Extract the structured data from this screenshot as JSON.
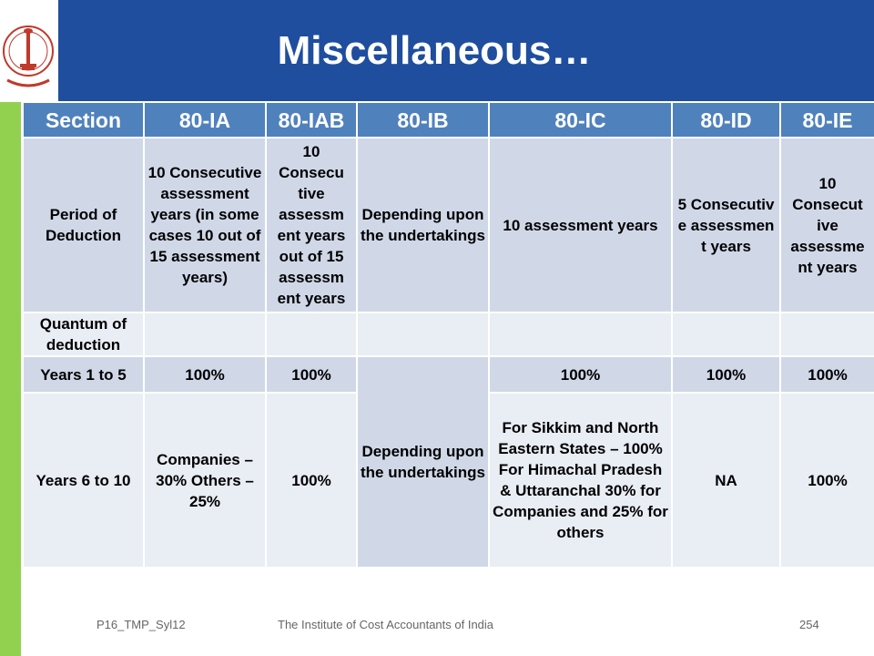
{
  "slide": {
    "title": "Miscellaneous…",
    "logo_name": "icai-seal-icon"
  },
  "table": {
    "headers": [
      "Section",
      "80-IA",
      "80-IAB",
      "80-IB",
      "80-IC",
      "80-ID",
      "80-IE"
    ],
    "period": {
      "label": "Period of Deduction",
      "ia": "10 Consecutive assessment years (in some cases 10 out of 15 assessment years)",
      "iab": "10 Consecu tive assessm ent years out of 15 assessm ent years",
      "ib": "Depending upon the undertakings",
      "ic": "10 assessment years",
      "id": "5 Consecutiv e assessmen t years",
      "ie": "10 Consecut ive assessme nt years"
    },
    "quantum": {
      "label": "Quantum of deduction"
    },
    "years1to5": {
      "label": "Years 1 to 5",
      "ia": "100%",
      "iab": "100%",
      "ib": "Depending upon the undertakings",
      "ic": "100%",
      "id": "100%",
      "ie": "100%"
    },
    "years6to10": {
      "label": "Years 6 to 10",
      "ia": "Companies – 30% Others – 25%",
      "iab": "100%",
      "ic_line1": "For Sikkim and North Eastern States – 100%",
      "ic_line2": "For Himachal Pradesh & Uttaranchal 30% for Companies and 25% for others",
      "id": "NA",
      "ie": "100%"
    }
  },
  "footer": {
    "left": "P16_TMP_Syl12",
    "center": "The Institute of Cost Accountants of India",
    "page": "254"
  }
}
